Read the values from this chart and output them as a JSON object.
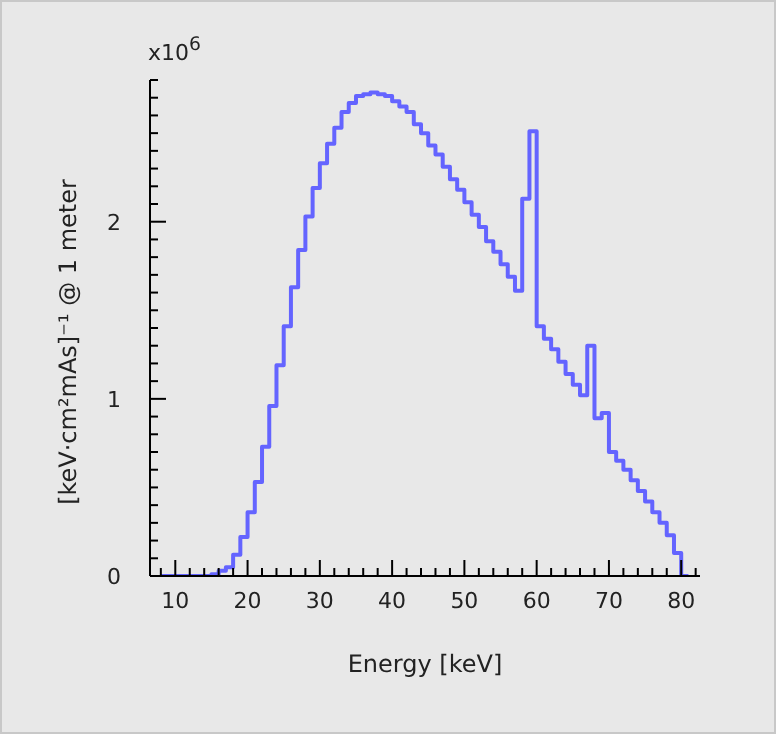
{
  "chart_data": {
    "type": "step",
    "xlabel": "Energy [keV]",
    "ylabel": "[keV·cm²mAs]⁻¹ @ 1 meter",
    "annotations": [
      "x10$^{6}$"
    ],
    "x": [
      8,
      9,
      10,
      11,
      12,
      13,
      14,
      15,
      16,
      17,
      18,
      19,
      20,
      21,
      22,
      23,
      24,
      25,
      26,
      27,
      28,
      29,
      30,
      31,
      32,
      33,
      34,
      35,
      36,
      37,
      38,
      39,
      40,
      41,
      42,
      43,
      44,
      45,
      46,
      47,
      48,
      49,
      50,
      51,
      52,
      53,
      54,
      55,
      56,
      57,
      58,
      59,
      60,
      61,
      62,
      63,
      64,
      65,
      66,
      67,
      68,
      69,
      70,
      71,
      72,
      73,
      74,
      75,
      76,
      77,
      78,
      79,
      80,
      81
    ],
    "series": [
      {
        "color": "#6464ff",
        "values": [
          0,
          0,
          0,
          0,
          0,
          0,
          0,
          0.01,
          0.03,
          0.05,
          0.12,
          0.22,
          0.36,
          0.53,
          0.73,
          0.96,
          1.19,
          1.41,
          1.63,
          1.84,
          2.03,
          2.19,
          2.33,
          2.44,
          2.53,
          2.62,
          2.67,
          2.71,
          2.72,
          2.73,
          2.72,
          2.71,
          2.68,
          2.65,
          2.62,
          2.55,
          2.5,
          2.43,
          2.38,
          2.31,
          2.24,
          2.18,
          2.11,
          2.04,
          1.97,
          1.89,
          1.83,
          1.76,
          1.69,
          1.61,
          2.13,
          2.51,
          1.41,
          1.34,
          1.28,
          1.21,
          1.14,
          1.08,
          1.02,
          1.3,
          0.89,
          0.92,
          0.7,
          0.65,
          0.6,
          0.54,
          0.48,
          0.42,
          0.36,
          0.3,
          0.23,
          0.13,
          0,
          0
        ]
      }
    ],
    "xlim": [
      6.5,
      82.6
    ],
    "ylim": [
      0,
      2.8
    ],
    "xticks": [
      {
        "value": 8,
        "label": null
      },
      10,
      {
        "value": 12,
        "label": null
      },
      {
        "value": 14,
        "label": null
      },
      {
        "value": 16,
        "label": null
      },
      {
        "value": 18,
        "label": null
      },
      20,
      {
        "value": 22,
        "label": null
      },
      {
        "value": 24,
        "label": null
      },
      {
        "value": 26,
        "label": null
      },
      {
        "value": 28,
        "label": null
      },
      30,
      {
        "value": 32,
        "label": null
      },
      {
        "value": 34,
        "label": null
      },
      {
        "value": 36,
        "label": null
      },
      {
        "value": 38,
        "label": null
      },
      40,
      {
        "value": 42,
        "label": null
      },
      {
        "value": 44,
        "label": null
      },
      {
        "value": 46,
        "label": null
      },
      {
        "value": 48,
        "label": null
      },
      50,
      {
        "value": 52,
        "label": null
      },
      {
        "value": 54,
        "label": null
      },
      {
        "value": 56,
        "label": null
      },
      {
        "value": 58,
        "label": null
      },
      60,
      {
        "value": 62,
        "label": null
      },
      {
        "value": 64,
        "label": null
      },
      {
        "value": 66,
        "label": null
      },
      {
        "value": 68,
        "label": null
      },
      70,
      {
        "value": 72,
        "label": null
      },
      {
        "value": 74,
        "label": null
      },
      {
        "value": 76,
        "label": null
      },
      {
        "value": 78,
        "label": null
      },
      80,
      {
        "value": 82,
        "label": null
      }
    ],
    "yticks": [
      0,
      {
        "value": 0.1,
        "label": null
      },
      {
        "value": 0.2,
        "label": null
      },
      {
        "value": 0.3,
        "label": null
      },
      {
        "value": 0.4,
        "label": null
      },
      {
        "value": 0.5,
        "label": null
      },
      {
        "value": 0.6,
        "label": null
      },
      {
        "value": 0.7,
        "label": null
      },
      {
        "value": 0.8,
        "label": null
      },
      {
        "value": 0.9,
        "label": null
      },
      1,
      {
        "value": 1.1,
        "label": null
      },
      {
        "value": 1.2,
        "label": null
      },
      {
        "value": 1.3,
        "label": null
      },
      {
        "value": 1.4,
        "label": null
      },
      {
        "value": 1.5,
        "label": null
      },
      {
        "value": 1.6,
        "label": null
      },
      {
        "value": 1.7,
        "label": null
      },
      {
        "value": 1.8,
        "label": null
      },
      {
        "value": 1.9,
        "label": null
      },
      2,
      {
        "value": 2.1,
        "label": null
      },
      {
        "value": 2.2,
        "label": null
      },
      {
        "value": 2.3,
        "label": null
      },
      {
        "value": 2.4,
        "label": null
      },
      {
        "value": 2.5,
        "label": null
      },
      {
        "value": 2.6,
        "label": null
      },
      {
        "value": 2.7,
        "label": null
      },
      {
        "value": 2.8,
        "label": null
      }
    ],
    "grid": false,
    "legend": false,
    "marker": "none",
    "line_style": "solid"
  }
}
